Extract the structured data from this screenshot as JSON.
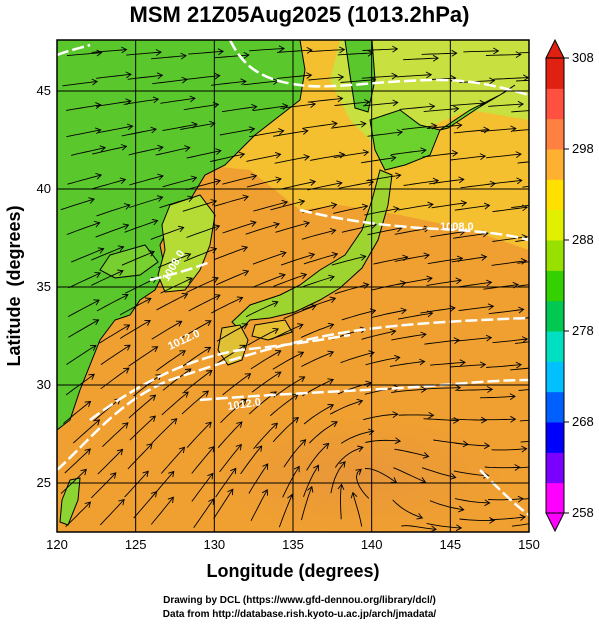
{
  "title": "MSM 21Z05Aug2025 (1013.2hPa)",
  "map": {
    "lon_range": [
      120,
      150
    ],
    "lat_range": [
      22.5,
      47.6
    ],
    "x_ticks": [
      120,
      125,
      130,
      135,
      140,
      145,
      150
    ],
    "y_ticks": [
      25,
      30,
      35,
      40,
      45
    ],
    "xlabel": "Longitude (degrees)",
    "ylabel": "Latitude  (degrees)",
    "grid": true,
    "contour_labels": [
      "1012.0",
      "1012.0",
      "1008.0",
      "1008.0"
    ]
  },
  "colorbar": {
    "ticks": [
      308,
      298,
      288,
      278,
      268,
      258
    ],
    "min": 258,
    "max": 308,
    "colors": [
      "#ff00ff",
      "#7a00ff",
      "#0000ff",
      "#0060ff",
      "#00c0ff",
      "#00e0c0",
      "#00c850",
      "#34d000",
      "#98e000",
      "#e0f000",
      "#ffe000",
      "#ffb030",
      "#ff8040",
      "#ff5040",
      "#e02010"
    ]
  },
  "credits": {
    "line1": "Drawing by DCL (https://www.gfd-dennou.org/library/dcl/)",
    "line2": "Data from http://database.rish.kyoto-u.ac.jp/arch/jmadata/"
  }
}
